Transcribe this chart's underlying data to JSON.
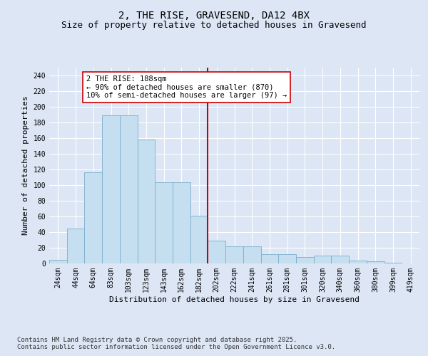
{
  "title": "2, THE RISE, GRAVESEND, DA12 4BX",
  "subtitle": "Size of property relative to detached houses in Gravesend",
  "xlabel": "Distribution of detached houses by size in Gravesend",
  "ylabel": "Number of detached properties",
  "bin_labels": [
    "24sqm",
    "44sqm",
    "64sqm",
    "83sqm",
    "103sqm",
    "123sqm",
    "143sqm",
    "162sqm",
    "182sqm",
    "202sqm",
    "222sqm",
    "241sqm",
    "261sqm",
    "281sqm",
    "301sqm",
    "320sqm",
    "340sqm",
    "360sqm",
    "380sqm",
    "399sqm",
    "419sqm"
  ],
  "bar_heights": [
    5,
    45,
    116,
    189,
    189,
    158,
    104,
    104,
    61,
    29,
    22,
    22,
    12,
    12,
    8,
    10,
    10,
    4,
    3,
    1,
    0
  ],
  "bar_color": "#c5dff0",
  "bar_edge_color": "#7aaecc",
  "vline_x": 8.5,
  "vline_color": "#cc0000",
  "annotation_text": "2 THE RISE: 188sqm\n← 90% of detached houses are smaller (870)\n10% of semi-detached houses are larger (97) →",
  "annotation_box_color": "#ffffff",
  "annotation_box_edge": "#cc0000",
  "ylim": [
    0,
    250
  ],
  "yticks": [
    0,
    20,
    40,
    60,
    80,
    100,
    120,
    140,
    160,
    180,
    200,
    220,
    240
  ],
  "bg_color": "#dce6f5",
  "plot_bg_color": "#dce6f5",
  "grid_color": "#ffffff",
  "footer": "Contains HM Land Registry data © Crown copyright and database right 2025.\nContains public sector information licensed under the Open Government Licence v3.0.",
  "title_fontsize": 10,
  "subtitle_fontsize": 9,
  "axis_label_fontsize": 8,
  "tick_fontsize": 7,
  "annotation_fontsize": 7.5,
  "footer_fontsize": 6.5
}
